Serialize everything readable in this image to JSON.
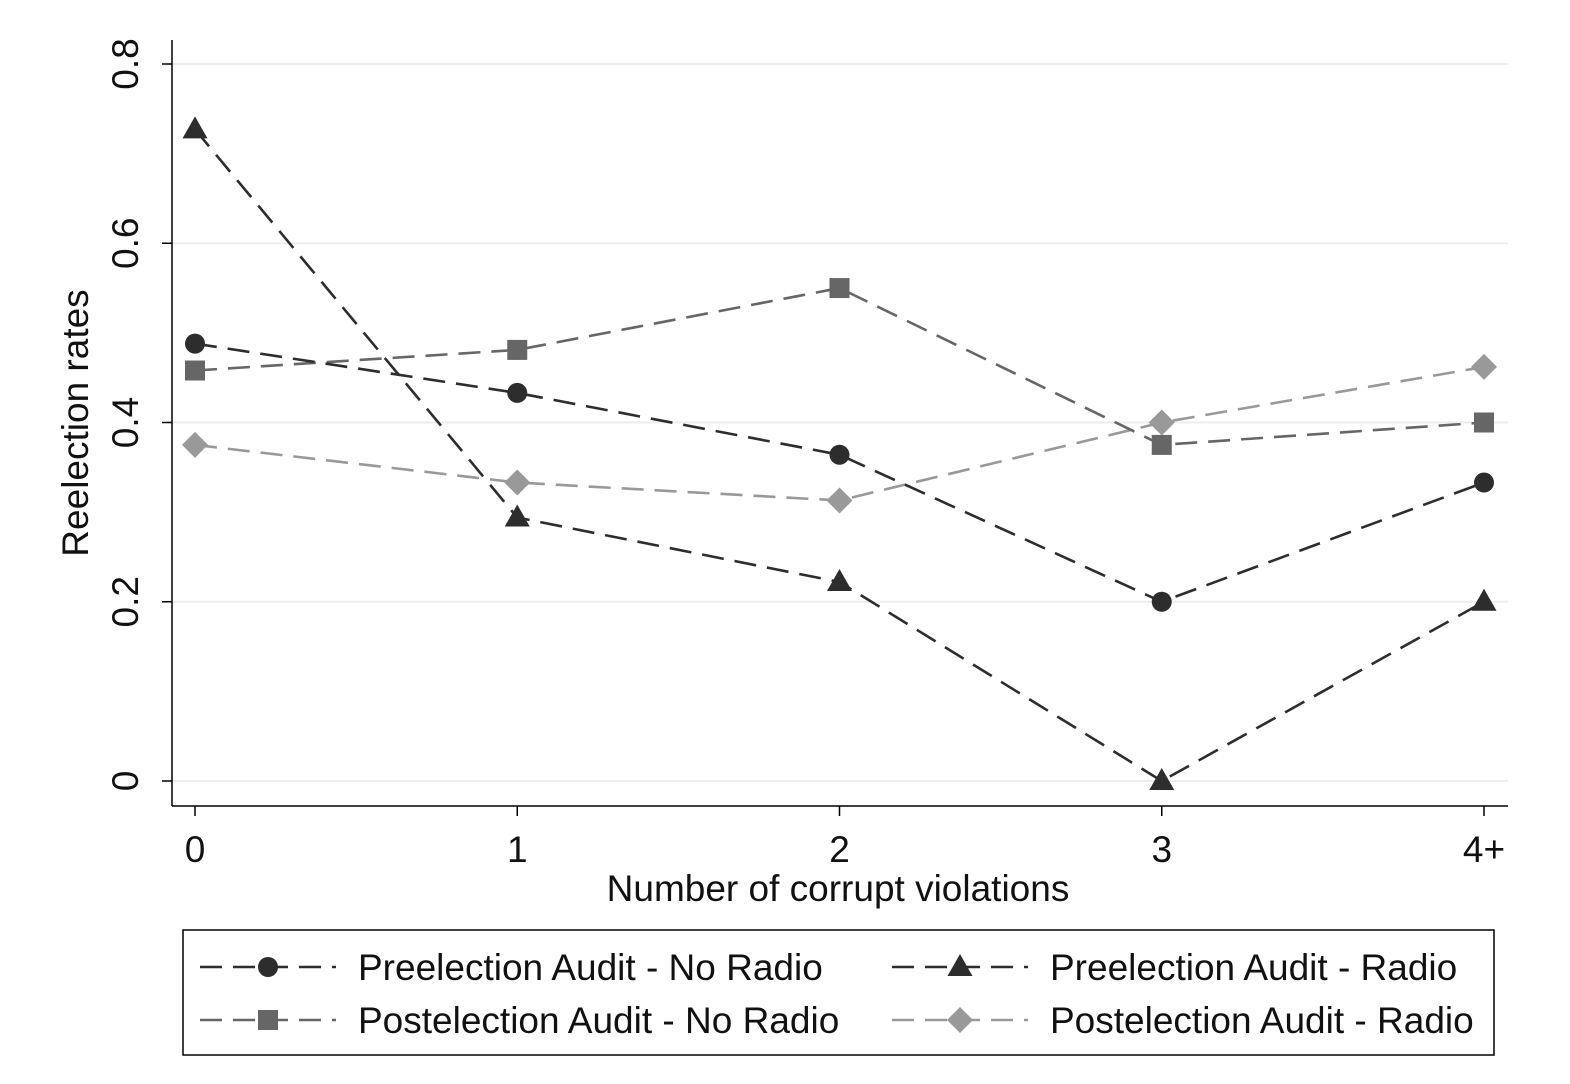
{
  "chart_data": {
    "type": "line",
    "categories": [
      "0",
      "1",
      "2",
      "3",
      "4+"
    ],
    "xlabel": "Number of corrupt violations",
    "ylabel": "Reelection rates",
    "ylim": [
      0,
      0.8
    ],
    "yticks": [
      "0",
      "0.2",
      "0.4",
      "0.6",
      "0.8"
    ],
    "grid": true,
    "legend_position": "bottom",
    "series": [
      {
        "name": "Preelection Audit - No Radio",
        "marker": "circle",
        "color": "#2d2d2d",
        "values": [
          0.488,
          0.433,
          0.364,
          0.2,
          0.333
        ]
      },
      {
        "name": "Preelection Audit - Radio",
        "marker": "triangle",
        "color": "#2d2d2d",
        "values": [
          0.727,
          0.294,
          0.222,
          0.0,
          0.2
        ]
      },
      {
        "name": "Postelection Audit - No Radio",
        "marker": "square",
        "color": "#666666",
        "values": [
          0.458,
          0.481,
          0.55,
          0.375,
          0.4
        ]
      },
      {
        "name": "Postelection Audit - Radio",
        "marker": "diamond",
        "color": "#999999",
        "values": [
          0.375,
          0.333,
          0.313,
          0.4,
          0.462
        ]
      }
    ]
  }
}
